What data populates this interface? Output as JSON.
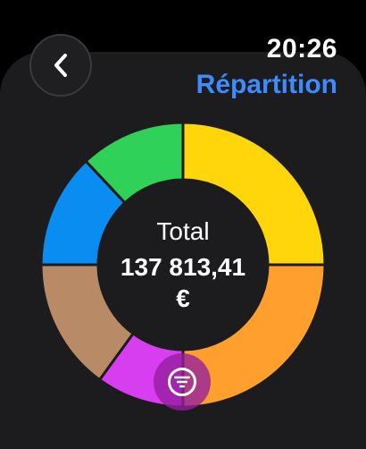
{
  "status": {
    "time": "20:26"
  },
  "header": {
    "title": "Répartition",
    "back_icon": "chevron-left-icon"
  },
  "summary": {
    "label": "Total",
    "value": "137 813,41",
    "currency": "€"
  },
  "filter": {
    "icon": "filter-icon",
    "color": "#9a1fa8"
  },
  "chart_data": {
    "type": "pie",
    "title": "",
    "start_angle_deg": 0,
    "slices": [
      {
        "value": 25,
        "color": "#ffd60a"
      },
      {
        "value": 25,
        "color": "#ff9f2e"
      },
      {
        "value": 10,
        "color": "#d63ef0"
      },
      {
        "value": 15,
        "color": "#b88b66"
      },
      {
        "value": 13,
        "color": "#0a8df0"
      },
      {
        "value": 12,
        "color": "#2fd158"
      }
    ]
  }
}
